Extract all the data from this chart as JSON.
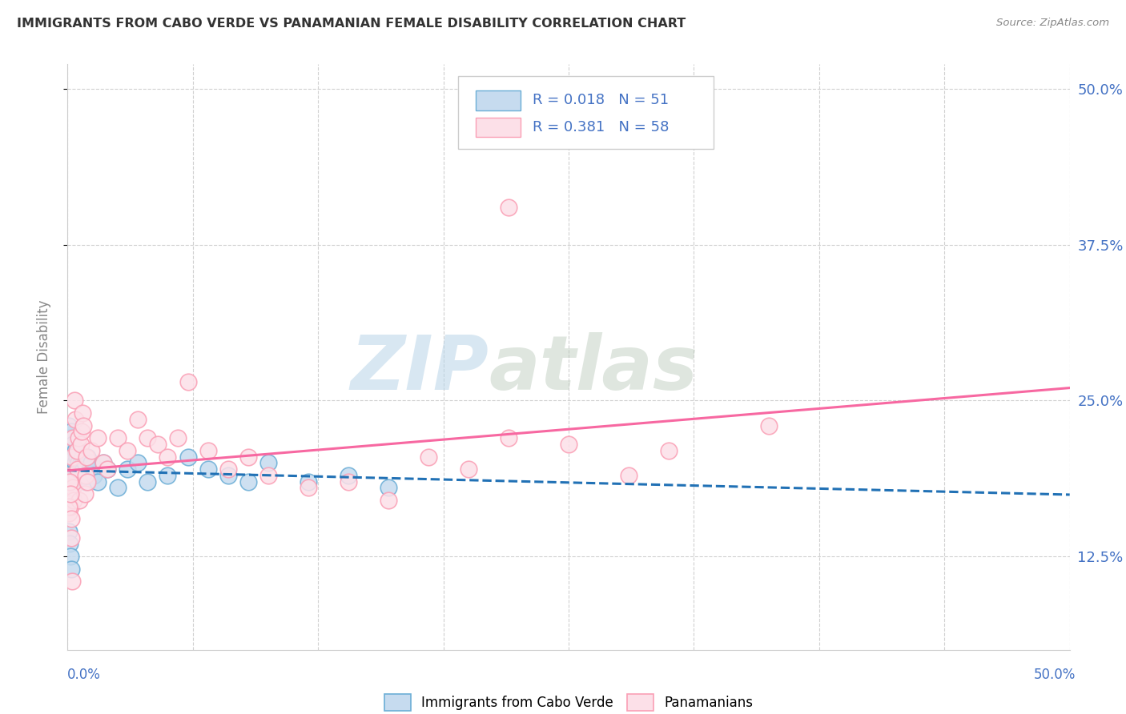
{
  "title": "IMMIGRANTS FROM CABO VERDE VS PANAMANIAN FEMALE DISABILITY CORRELATION CHART",
  "source": "Source: ZipAtlas.com",
  "ylabel": "Female Disability",
  "xmin": 0.0,
  "xmax": 50.0,
  "ymin": 5.0,
  "ymax": 52.0,
  "yticks": [
    12.5,
    25.0,
    37.5,
    50.0
  ],
  "ytick_labels": [
    "12.5%",
    "25.0%",
    "37.5%",
    "50.0%"
  ],
  "xtick_positions": [
    0,
    6.25,
    12.5,
    18.75,
    25.0,
    31.25,
    37.5,
    43.75,
    50.0
  ],
  "watermark_zip": "ZIP",
  "watermark_atlas": "atlas",
  "background_color": "#ffffff",
  "grid_color": "#d0d0d0",
  "series": [
    {
      "name": "Immigrants from Cabo Verde",
      "R": 0.018,
      "N": 51,
      "dot_fill": "#c6dbef",
      "dot_edge": "#6baed6",
      "line_color": "#2171b5",
      "line_dash": "dashed",
      "x": [
        0.05,
        0.08,
        0.1,
        0.12,
        0.15,
        0.18,
        0.2,
        0.22,
        0.25,
        0.28,
        0.3,
        0.35,
        0.38,
        0.4,
        0.42,
        0.45,
        0.48,
        0.5,
        0.55,
        0.6,
        0.65,
        0.7,
        0.75,
        0.8,
        0.85,
        0.9,
        0.95,
        1.0,
        1.1,
        1.2,
        1.3,
        1.5,
        1.8,
        2.0,
        2.5,
        3.0,
        3.5,
        4.0,
        5.0,
        6.0,
        7.0,
        8.0,
        9.0,
        10.0,
        12.0,
        14.0,
        16.0,
        0.06,
        0.09,
        0.13,
        0.17
      ],
      "y": [
        23.0,
        21.5,
        22.0,
        20.5,
        21.0,
        19.5,
        22.5,
        20.0,
        21.5,
        19.0,
        20.5,
        19.5,
        21.0,
        20.0,
        19.0,
        20.5,
        19.5,
        21.0,
        20.0,
        19.5,
        20.0,
        19.0,
        20.5,
        19.5,
        20.0,
        18.5,
        19.0,
        20.5,
        19.5,
        20.0,
        19.0,
        18.5,
        20.0,
        19.5,
        18.0,
        19.5,
        20.0,
        18.5,
        19.0,
        20.5,
        19.5,
        19.0,
        18.5,
        20.0,
        18.5,
        19.0,
        18.0,
        14.5,
        13.5,
        12.5,
        11.5
      ]
    },
    {
      "name": "Panamanians",
      "R": 0.381,
      "N": 58,
      "dot_fill": "#fce0e8",
      "dot_edge": "#fa9fb5",
      "line_color": "#f768a1",
      "line_dash": "solid",
      "x": [
        0.05,
        0.08,
        0.1,
        0.12,
        0.15,
        0.18,
        0.2,
        0.22,
        0.25,
        0.28,
        0.3,
        0.35,
        0.4,
        0.45,
        0.5,
        0.55,
        0.6,
        0.65,
        0.7,
        0.75,
        0.8,
        0.85,
        0.9,
        0.95,
        1.0,
        1.2,
        1.5,
        1.8,
        2.0,
        2.5,
        3.0,
        3.5,
        4.0,
        4.5,
        5.0,
        5.5,
        6.0,
        7.0,
        8.0,
        9.0,
        10.0,
        12.0,
        14.0,
        16.0,
        18.0,
        20.0,
        22.0,
        25.0,
        28.0,
        30.0,
        35.0,
        0.07,
        0.11,
        0.14,
        0.17,
        0.19,
        0.23,
        22.0
      ],
      "y": [
        17.5,
        16.0,
        18.0,
        17.0,
        16.5,
        19.0,
        17.5,
        20.5,
        18.0,
        22.0,
        17.0,
        25.0,
        23.5,
        21.0,
        19.5,
        22.0,
        17.0,
        21.5,
        22.5,
        24.0,
        23.0,
        17.5,
        19.0,
        20.5,
        18.5,
        21.0,
        22.0,
        20.0,
        19.5,
        22.0,
        21.0,
        23.5,
        22.0,
        21.5,
        20.5,
        22.0,
        26.5,
        21.0,
        19.5,
        20.5,
        19.0,
        18.0,
        18.5,
        17.0,
        20.5,
        19.5,
        22.0,
        21.5,
        19.0,
        21.0,
        23.0,
        16.5,
        18.5,
        17.5,
        15.5,
        14.0,
        10.5,
        40.5
      ]
    }
  ]
}
